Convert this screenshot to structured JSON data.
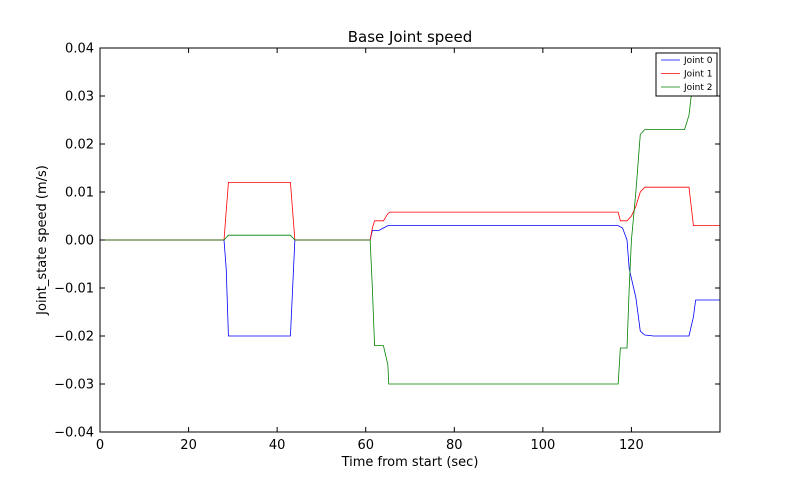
{
  "chart_data": {
    "type": "line",
    "title": "Base Joint speed",
    "xlabel": "Time from start (sec)",
    "ylabel": "Joint_state speed (m/s)",
    "xlim": [
      0,
      140
    ],
    "ylim": [
      -0.04,
      0.04
    ],
    "xticks": [
      0,
      20,
      40,
      60,
      80,
      100,
      120
    ],
    "xtick_labels": [
      "0",
      "20",
      "40",
      "60",
      "80",
      "100",
      "120"
    ],
    "yticks": [
      0.04,
      0.03,
      0.02,
      0.01,
      0.0,
      -0.01,
      -0.02,
      -0.03,
      -0.04
    ],
    "ytick_labels": [
      "0.04",
      "0.03",
      "0.02",
      "0.01",
      "0.00",
      "−0.01",
      "−0.02",
      "−0.03",
      "−0.04"
    ],
    "grid": false,
    "legend_position": "top-right",
    "series": [
      {
        "name": "Joint 0",
        "color": "#0000ff",
        "points": [
          [
            0,
            0
          ],
          [
            28,
            0
          ],
          [
            28.5,
            -0.006
          ],
          [
            29,
            -0.02
          ],
          [
            35,
            -0.02
          ],
          [
            40,
            -0.02
          ],
          [
            43,
            -0.02
          ],
          [
            43.5,
            -0.01
          ],
          [
            44,
            0
          ],
          [
            61,
            0
          ],
          [
            61.5,
            0.002
          ],
          [
            63,
            0.002
          ],
          [
            64,
            0.0025
          ],
          [
            65,
            0.003
          ],
          [
            117,
            0.003
          ],
          [
            118,
            0.0025
          ],
          [
            119,
            0
          ],
          [
            119.5,
            -0.006
          ],
          [
            121,
            -0.012
          ],
          [
            122,
            -0.019
          ],
          [
            123,
            -0.0198
          ],
          [
            125,
            -0.02
          ],
          [
            133,
            -0.02
          ],
          [
            134,
            -0.016
          ],
          [
            134.5,
            -0.0125
          ],
          [
            140,
            -0.0125
          ]
        ]
      },
      {
        "name": "Joint 1",
        "color": "#ff0000",
        "points": [
          [
            0,
            0
          ],
          [
            28,
            0
          ],
          [
            28.5,
            0.006
          ],
          [
            29,
            0.012
          ],
          [
            40,
            0.012
          ],
          [
            43,
            0.012
          ],
          [
            43.5,
            0.006
          ],
          [
            44,
            0
          ],
          [
            61,
            0
          ],
          [
            61.5,
            0.0025
          ],
          [
            62,
            0.004
          ],
          [
            64,
            0.004
          ],
          [
            65,
            0.0055
          ],
          [
            65.5,
            0.0058
          ],
          [
            117,
            0.0058
          ],
          [
            117.5,
            0.004
          ],
          [
            119,
            0.004
          ],
          [
            120,
            0.005
          ],
          [
            121,
            0.007
          ],
          [
            122,
            0.01
          ],
          [
            123,
            0.011
          ],
          [
            133,
            0.011
          ],
          [
            133.5,
            0.007
          ],
          [
            134,
            0.003
          ],
          [
            140,
            0.003
          ]
        ]
      },
      {
        "name": "Joint 2",
        "color": "#008000",
        "points": [
          [
            0,
            0
          ],
          [
            28,
            0
          ],
          [
            28.5,
            0.0005
          ],
          [
            29,
            0.001
          ],
          [
            43,
            0.001
          ],
          [
            43.5,
            0.0005
          ],
          [
            44,
            0
          ],
          [
            61,
            0
          ],
          [
            61.5,
            -0.01
          ],
          [
            62,
            -0.022
          ],
          [
            64,
            -0.022
          ],
          [
            65,
            -0.026
          ],
          [
            65.2,
            -0.03
          ],
          [
            117,
            -0.03
          ],
          [
            117.5,
            -0.0225
          ],
          [
            119,
            -0.0225
          ],
          [
            119.5,
            -0.01
          ],
          [
            120,
            0
          ],
          [
            121,
            0.01
          ],
          [
            122,
            0.022
          ],
          [
            123,
            0.023
          ],
          [
            132,
            0.023
          ],
          [
            133,
            0.026
          ],
          [
            133.5,
            0.03
          ],
          [
            140,
            0.03
          ]
        ]
      }
    ]
  }
}
